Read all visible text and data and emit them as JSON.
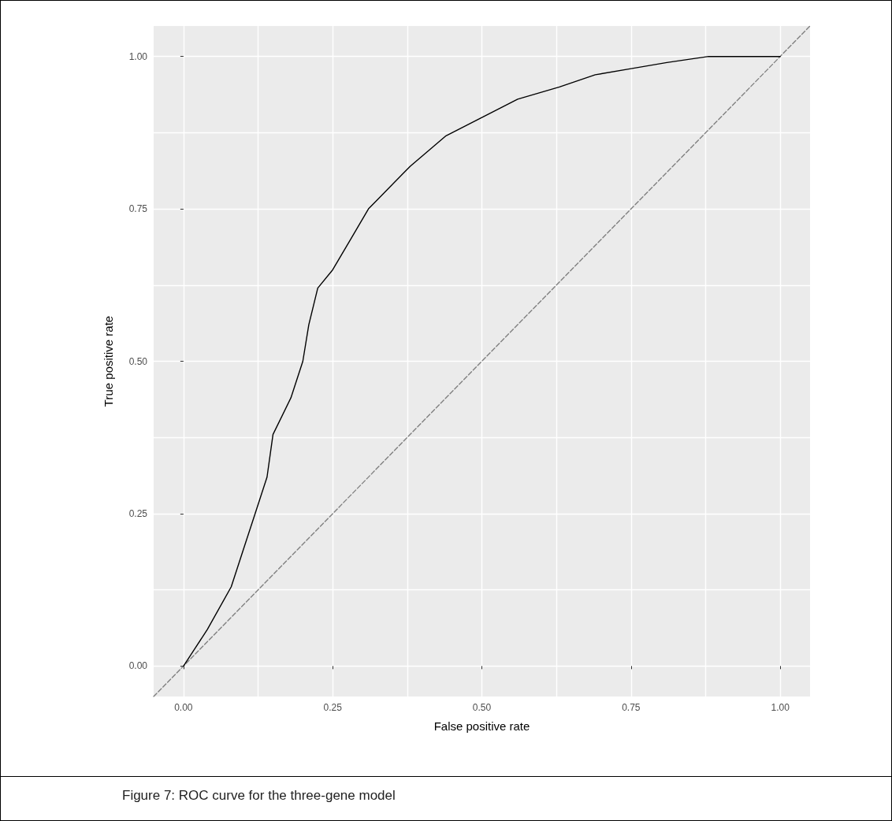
{
  "chart_data": {
    "type": "line",
    "xlabel": "False positive rate",
    "ylabel": "True positive rate",
    "annotations": [
      "Figure 7: ROC curve for the three-gene model"
    ],
    "xlim": [
      -0.05,
      1.05
    ],
    "ylim": [
      -0.05,
      1.05
    ],
    "xticks": [
      {
        "value": 0,
        "label": "0.00"
      },
      {
        "value": 0.125,
        "label": null
      },
      {
        "value": 0.25,
        "label": "0.25"
      },
      {
        "value": 0.375,
        "label": null
      },
      {
        "value": 0.5,
        "label": "0.50"
      },
      {
        "value": 0.625,
        "label": null
      },
      {
        "value": 0.75,
        "label": "0.75"
      },
      {
        "value": 0.875,
        "label": null
      },
      {
        "value": 1,
        "label": "1.00"
      }
    ],
    "yticks": [
      {
        "value": 0,
        "label": "0.00"
      },
      {
        "value": 0.125,
        "label": null
      },
      {
        "value": 0.25,
        "label": "0.25"
      },
      {
        "value": 0.375,
        "label": null
      },
      {
        "value": 0.5,
        "label": "0.50"
      },
      {
        "value": 0.625,
        "label": null
      },
      {
        "value": 0.75,
        "label": "0.75"
      },
      {
        "value": 0.875,
        "label": null
      },
      {
        "value": 1,
        "label": "1.00"
      }
    ],
    "grid": true,
    "marker": "none",
    "series": [
      {
        "color": "#000000",
        "line_style": "solid",
        "x": [
          0,
          0.02,
          0.04,
          0.08,
          0.1,
          0.12,
          0.14,
          0.15,
          0.18,
          0.2,
          0.21,
          0.225,
          0.25,
          0.28,
          0.31,
          0.38,
          0.44,
          0.5,
          0.56,
          0.63,
          0.69,
          0.75,
          0.81,
          0.88,
          1
        ],
        "values": [
          0,
          0.03,
          0.06,
          0.13,
          0.19,
          0.25,
          0.31,
          0.38,
          0.44,
          0.5,
          0.56,
          0.62,
          0.65,
          0.7,
          0.75,
          0.82,
          0.87,
          0.9,
          0.93,
          0.95,
          0.97,
          0.98,
          0.99,
          1,
          1
        ]
      },
      {
        "color": "#808080",
        "line_style": "dashed",
        "x": [
          -0.05,
          1.05
        ],
        "values": [
          -0.05,
          1.05
        ]
      }
    ]
  }
}
